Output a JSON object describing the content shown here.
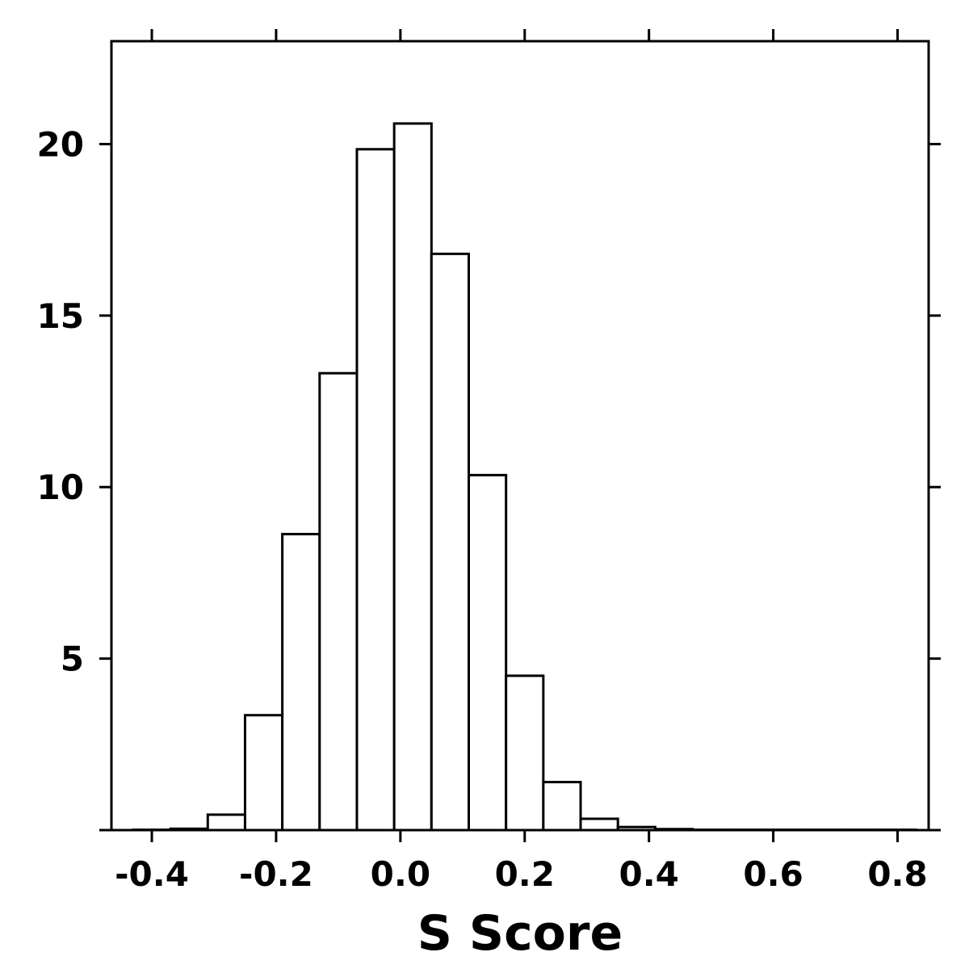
{
  "chart_data": {
    "type": "bar",
    "title": "",
    "xlabel": "S Score",
    "ylabel": "",
    "xlim": [
      -0.465,
      0.85
    ],
    "ylim": [
      0,
      23
    ],
    "grid": false,
    "x_ticks": [
      -0.4,
      -0.2,
      0.0,
      0.2,
      0.4,
      0.6,
      0.8
    ],
    "x_tick_labels": [
      "-0.4",
      "-0.2",
      "0.0",
      "0.2",
      "0.4",
      "0.6",
      "0.8"
    ],
    "y_ticks": [
      5,
      10,
      15,
      20
    ],
    "y_tick_labels": [
      "5",
      "10",
      "15",
      "20"
    ],
    "bin_width": 0.06,
    "bin_starts": [
      -0.43,
      -0.37,
      -0.31,
      -0.25,
      -0.19,
      -0.13,
      -0.07,
      -0.01,
      0.05,
      0.11,
      0.17,
      0.23,
      0.29,
      0.35,
      0.41,
      0.47,
      0.53,
      0.59,
      0.65,
      0.71,
      0.77
    ],
    "values": [
      0.01,
      0.04,
      0.45,
      3.35,
      8.63,
      13.32,
      19.85,
      20.6,
      16.8,
      10.35,
      4.5,
      1.4,
      0.33,
      0.09,
      0.03,
      0.01,
      0.01,
      0.01,
      0.01,
      0.01,
      0.01
    ]
  }
}
